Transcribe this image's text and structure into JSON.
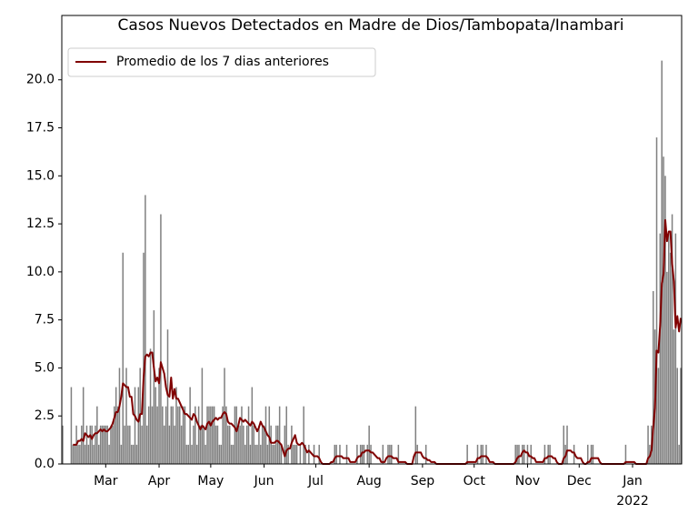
{
  "chart_data": {
    "type": "bar",
    "title": "Casos Nuevos Detectados en Madre de Dios/Tambopata/Inambari",
    "categories": [
      null,
      null,
      null,
      null,
      null,
      null,
      null,
      null,
      null,
      null,
      null,
      null,
      null,
      null,
      null,
      null,
      null,
      null,
      null,
      null,
      null,
      null,
      null,
      null,
      null,
      "Mar",
      null,
      null,
      null,
      null,
      null,
      null,
      null,
      null,
      null,
      null,
      null,
      null,
      null,
      null,
      null,
      null,
      null,
      null,
      null,
      null,
      null,
      null,
      null,
      null,
      null,
      null,
      null,
      null,
      null,
      null,
      "Apr",
      null,
      null,
      null,
      null,
      null,
      null,
      null,
      null,
      null,
      null,
      null,
      null,
      null,
      null,
      null,
      null,
      null,
      null,
      null,
      null,
      null,
      null,
      null,
      null,
      null,
      null,
      null,
      null,
      null,
      "May",
      null,
      null,
      null,
      null,
      null,
      null,
      null,
      null,
      null,
      null,
      null,
      null,
      null,
      null,
      null,
      null,
      null,
      null,
      null,
      null,
      null,
      null,
      null,
      null,
      null,
      null,
      null,
      null,
      null,
      null,
      "Jun",
      null,
      null,
      null,
      null,
      null,
      null,
      null,
      null,
      null,
      null,
      null,
      null,
      null,
      null,
      null,
      null,
      null,
      null,
      null,
      null,
      null,
      null,
      null,
      null,
      null,
      null,
      null,
      null,
      null,
      "Jul",
      null,
      null,
      null,
      null,
      null,
      null,
      null,
      null,
      null,
      null,
      null,
      null,
      null,
      null,
      null,
      null,
      null,
      null,
      null,
      null,
      null,
      null,
      null,
      null,
      null,
      null,
      null,
      null,
      null,
      null,
      "Aug",
      null,
      null,
      null,
      null,
      null,
      null,
      null,
      null,
      null,
      null,
      null,
      null,
      null,
      null,
      null,
      null,
      null,
      null,
      null,
      null,
      null,
      null,
      null,
      null,
      null,
      null,
      null,
      null,
      null,
      null,
      "Sep",
      null,
      null,
      null,
      null,
      null,
      null,
      null,
      null,
      null,
      null,
      null,
      null,
      null,
      null,
      null,
      null,
      null,
      null,
      null,
      null,
      null,
      null,
      null,
      null,
      null,
      null,
      null,
      null,
      null,
      "Oct",
      null,
      null,
      null,
      null,
      null,
      null,
      null,
      null,
      null,
      null,
      null,
      null,
      null,
      null,
      null,
      null,
      null,
      null,
      null,
      null,
      null,
      null,
      null,
      null,
      null,
      null,
      null,
      null,
      null,
      null,
      "Nov",
      null,
      null,
      null,
      null,
      null,
      null,
      null,
      null,
      null,
      null,
      null,
      null,
      null,
      null,
      null,
      null,
      null,
      null,
      null,
      null,
      null,
      null,
      null,
      null,
      null,
      null,
      null,
      null,
      null,
      "Dec",
      null,
      null,
      null,
      null,
      null,
      null,
      null,
      null,
      null,
      null,
      null,
      null,
      null,
      null,
      null,
      null,
      null,
      null,
      null,
      null,
      null,
      null,
      null,
      null,
      null,
      null,
      null,
      null,
      null,
      null,
      "Jan",
      null,
      null,
      null,
      null,
      null,
      null,
      null,
      null,
      null,
      null,
      null,
      null,
      null,
      null,
      null,
      null,
      null,
      null,
      null,
      null,
      null,
      null,
      null,
      null,
      null,
      null,
      null,
      null
    ],
    "x_year_label": "2022",
    "values": [
      2,
      0,
      0,
      0,
      0,
      4,
      1,
      1,
      2,
      1,
      1,
      2,
      4,
      1,
      2,
      1,
      2,
      2,
      1,
      2,
      3,
      1,
      2,
      2,
      2,
      2,
      2,
      1,
      2,
      2,
      3,
      4,
      3,
      5,
      1,
      11,
      2,
      5,
      2,
      2,
      1,
      1,
      4,
      1,
      4,
      5,
      2,
      11,
      14,
      2,
      3,
      6,
      3,
      8,
      4,
      3,
      5,
      13,
      3,
      2,
      3,
      7,
      2,
      3,
      3,
      2,
      4,
      3,
      3,
      2,
      3,
      3,
      1,
      1,
      4,
      1,
      2,
      3,
      1,
      3,
      2,
      5,
      2,
      1,
      3,
      3,
      3,
      3,
      3,
      2,
      2,
      1,
      1,
      3,
      5,
      3,
      2,
      2,
      1,
      1,
      3,
      3,
      2,
      2,
      3,
      2,
      1,
      2,
      3,
      1,
      4,
      2,
      1,
      1,
      2,
      1,
      2,
      2,
      3,
      1,
      3,
      2,
      1,
      1,
      2,
      2,
      3,
      1,
      0,
      2,
      3,
      1,
      0,
      2,
      1,
      1,
      1,
      0,
      1,
      0,
      3,
      1,
      0,
      1,
      0,
      0,
      1,
      0,
      0,
      1,
      0,
      0,
      0,
      0,
      0,
      0,
      0,
      0,
      1,
      1,
      0,
      1,
      0,
      0,
      0,
      1,
      0,
      0,
      0,
      0,
      0,
      1,
      0,
      1,
      1,
      1,
      0,
      1,
      2,
      1,
      0,
      0,
      0,
      0,
      0,
      0,
      1,
      0,
      0,
      1,
      1,
      1,
      0,
      0,
      0,
      1,
      0,
      0,
      0,
      0,
      0,
      0,
      0,
      0,
      0,
      3,
      1,
      0,
      0,
      0,
      0,
      1,
      0,
      0,
      0,
      0,
      0,
      0,
      0,
      0,
      0,
      0,
      0,
      0,
      0,
      0,
      0,
      0,
      0,
      0,
      0,
      0,
      0,
      0,
      0,
      1,
      0,
      0,
      0,
      0,
      0,
      1,
      0,
      1,
      1,
      0,
      1,
      0,
      0,
      0,
      0,
      0,
      0,
      0,
      0,
      0,
      0,
      0,
      0,
      0,
      0,
      0,
      0,
      1,
      1,
      1,
      0,
      1,
      1,
      0,
      1,
      0,
      1,
      0,
      0,
      0,
      0,
      0,
      0,
      0,
      1,
      0,
      1,
      1,
      0,
      0,
      0,
      0,
      0,
      0,
      0,
      2,
      1,
      2,
      0,
      0,
      0,
      1,
      0,
      0,
      0,
      0,
      0,
      0,
      0,
      1,
      0,
      1,
      1,
      0,
      0,
      0,
      0,
      0,
      0,
      0,
      0,
      0,
      0,
      0,
      0,
      0,
      0,
      0,
      0,
      0,
      0,
      1,
      0,
      0,
      0,
      0,
      0,
      0,
      0,
      0,
      0,
      0,
      0,
      0,
      2,
      1,
      2,
      9,
      7,
      17,
      5,
      12,
      21,
      16,
      15,
      10,
      12,
      11,
      13,
      7,
      12,
      5,
      1,
      5
    ],
    "color": "#808080",
    "series": [
      {
        "name": "Promedio de los 7 dias anteriores",
        "color": "#800000",
        "values": [
          null,
          null,
          null,
          null,
          null,
          null,
          1.0,
          1.0,
          1.0,
          1.2,
          1.2,
          1.3,
          1.2,
          1.6,
          1.5,
          1.4,
          1.5,
          1.3,
          1.5,
          1.6,
          1.6,
          1.7,
          1.8,
          1.7,
          1.8,
          1.7,
          1.7,
          1.8,
          1.9,
          2.1,
          2.4,
          2.7,
          2.7,
          3.0,
          3.5,
          4.2,
          4.1,
          4.0,
          4.0,
          3.5,
          3.5,
          2.6,
          2.5,
          2.3,
          2.2,
          2.6,
          2.6,
          4.5,
          5.6,
          5.7,
          5.6,
          5.8,
          5.8,
          5.0,
          4.3,
          4.5,
          4.2,
          5.3,
          5.0,
          4.7,
          4.0,
          3.6,
          3.5,
          4.5,
          3.4,
          3.9,
          3.4,
          3.4,
          3.2,
          3.0,
          2.8,
          2.6,
          2.6,
          2.5,
          2.4,
          2.3,
          2.6,
          2.5,
          2.2,
          2.0,
          1.8,
          2.0,
          1.9,
          1.8,
          2.1,
          2.2,
          2.0,
          2.2,
          2.3,
          2.4,
          2.3,
          2.4,
          2.4,
          2.6,
          2.7,
          2.6,
          2.2,
          2.1,
          2.1,
          2.0,
          1.9,
          1.7,
          2.0,
          2.4,
          2.3,
          2.2,
          2.3,
          2.2,
          2.1,
          2.0,
          2.2,
          2.1,
          1.9,
          1.7,
          1.9,
          2.2,
          2.0,
          1.9,
          1.7,
          1.5,
          1.4,
          1.1,
          1.1,
          1.1,
          1.2,
          1.2,
          1.1,
          1.0,
          0.7,
          0.4,
          0.7,
          0.8,
          0.8,
          1.1,
          1.3,
          1.5,
          1.1,
          1.0,
          1.0,
          1.1,
          1.0,
          0.8,
          0.6,
          0.7,
          0.6,
          0.5,
          0.4,
          0.4,
          0.4,
          0.3,
          0.1,
          0,
          0,
          0,
          0,
          0,
          0.1,
          0.1,
          0.3,
          0.4,
          0.4,
          0.4,
          0.4,
          0.3,
          0.3,
          0.3,
          0.3,
          0.1,
          0.1,
          0.1,
          0.1,
          0.3,
          0.4,
          0.4,
          0.6,
          0.6,
          0.7,
          0.7,
          0.7,
          0.6,
          0.6,
          0.5,
          0.4,
          0.3,
          0.3,
          0.1,
          0.1,
          0.1,
          0.3,
          0.4,
          0.4,
          0.4,
          0.3,
          0.3,
          0.3,
          0.1,
          0.1,
          0.1,
          0.1,
          0.1,
          0,
          0,
          0,
          0,
          0.4,
          0.6,
          0.6,
          0.6,
          0.6,
          0.4,
          0.3,
          0.3,
          0.2,
          0.2,
          0.1,
          0.1,
          0.1,
          0,
          0,
          0,
          0,
          0,
          0,
          0,
          0,
          0,
          0,
          0,
          0,
          0,
          0,
          0,
          0,
          0,
          0,
          0.1,
          0.1,
          0.1,
          0.1,
          0.1,
          0.1,
          0.3,
          0.3,
          0.4,
          0.4,
          0.4,
          0.4,
          0.3,
          0.1,
          0.1,
          0.1,
          0,
          0,
          0,
          0,
          0,
          0,
          0,
          0,
          0,
          0,
          0,
          0,
          0.1,
          0.3,
          0.4,
          0.4,
          0.6,
          0.7,
          0.6,
          0.6,
          0.4,
          0.4,
          0.3,
          0.3,
          0.1,
          0.1,
          0.1,
          0.1,
          0.1,
          0.3,
          0.3,
          0.4,
          0.4,
          0.4,
          0.3,
          0.3,
          0.1,
          0,
          0,
          0,
          0.3,
          0.4,
          0.7,
          0.7,
          0.7,
          0.6,
          0.6,
          0.4,
          0.3,
          0.3,
          0.3,
          0.1,
          0,
          0,
          0.1,
          0.1,
          0.3,
          0.3,
          0.3,
          0.3,
          0.3,
          0.1,
          0,
          0,
          0,
          0,
          0,
          0,
          0,
          0,
          0,
          0,
          0,
          0,
          0,
          0,
          0.1,
          0.1,
          0.1,
          0.1,
          0.1,
          0.1,
          0,
          0,
          0,
          0,
          0,
          0,
          0,
          0.3,
          0.4,
          0.7,
          1.9,
          2.9,
          5.9,
          5.8,
          7.2,
          9.4,
          9.9,
          12.7,
          11.6,
          12.1,
          12.1,
          10.4,
          9.5,
          7.1,
          7.7,
          6.9,
          7.6
        ]
      }
    ],
    "ylim": [
      0,
      23.35
    ],
    "yticks": [
      {
        "value": 0,
        "label": "0.0"
      },
      {
        "value": 2.5,
        "label": "2.5"
      },
      {
        "value": 5,
        "label": "5.0"
      },
      {
        "value": 7.5,
        "label": "7.5"
      },
      {
        "value": 10,
        "label": "10.0"
      },
      {
        "value": 12.5,
        "label": "12.5"
      },
      {
        "value": 15,
        "label": "15.0"
      },
      {
        "value": 17.5,
        "label": "17.5"
      },
      {
        "value": 20,
        "label": "20.0"
      }
    ],
    "legend": "upper left"
  }
}
